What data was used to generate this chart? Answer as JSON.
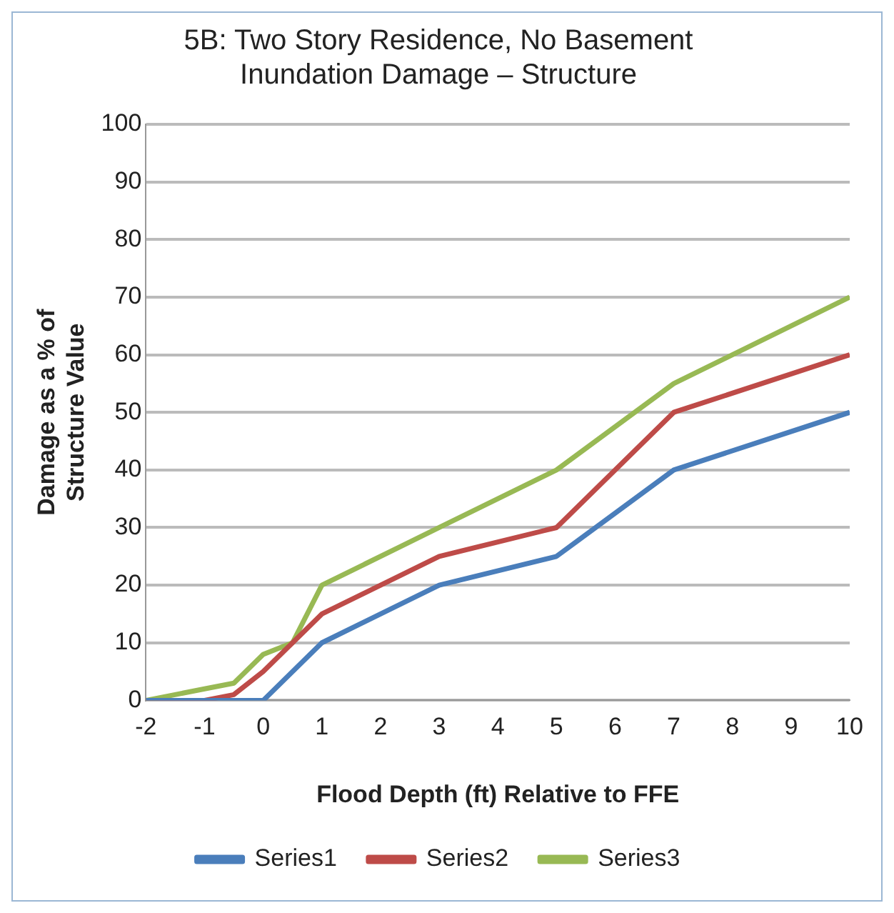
{
  "chart_data": {
    "type": "line",
    "title": [
      "5B: Two Story Residence, No Basement",
      "Inundation Damage – Structure"
    ],
    "xlabel": "Flood Depth (ft) Relative to FFE",
    "ylabel": [
      "Damage as a % of",
      "Structure Value"
    ],
    "xlim": [
      -2,
      10
    ],
    "xticks": [
      -2,
      -1,
      0,
      1,
      2,
      3,
      4,
      5,
      6,
      7,
      8,
      9,
      10
    ],
    "ylim": [
      0,
      100
    ],
    "yticks": [
      0,
      10,
      20,
      30,
      40,
      50,
      60,
      70,
      80,
      90,
      100
    ],
    "grid": "y",
    "legend": "bottom",
    "marker": "none",
    "series": [
      {
        "name": "Series1",
        "color": "#4a7ebb",
        "x": [
          -2,
          -1,
          0,
          1,
          3,
          5,
          7,
          10
        ],
        "values": [
          0,
          0,
          0,
          10,
          20,
          25,
          40,
          50
        ]
      },
      {
        "name": "Series2",
        "color": "#be4b48",
        "x": [
          -2,
          -1,
          -0.5,
          0,
          0.5,
          1,
          3,
          5,
          7,
          10
        ],
        "values": [
          0,
          0,
          1,
          5,
          10,
          15,
          25,
          30,
          50,
          60
        ]
      },
      {
        "name": "Series3",
        "color": "#98b954",
        "x": [
          -2,
          -1,
          -0.5,
          0,
          0.5,
          1,
          3,
          5,
          7,
          10
        ],
        "values": [
          0,
          2,
          3,
          8,
          10,
          20,
          30,
          40,
          55,
          70
        ]
      }
    ]
  }
}
